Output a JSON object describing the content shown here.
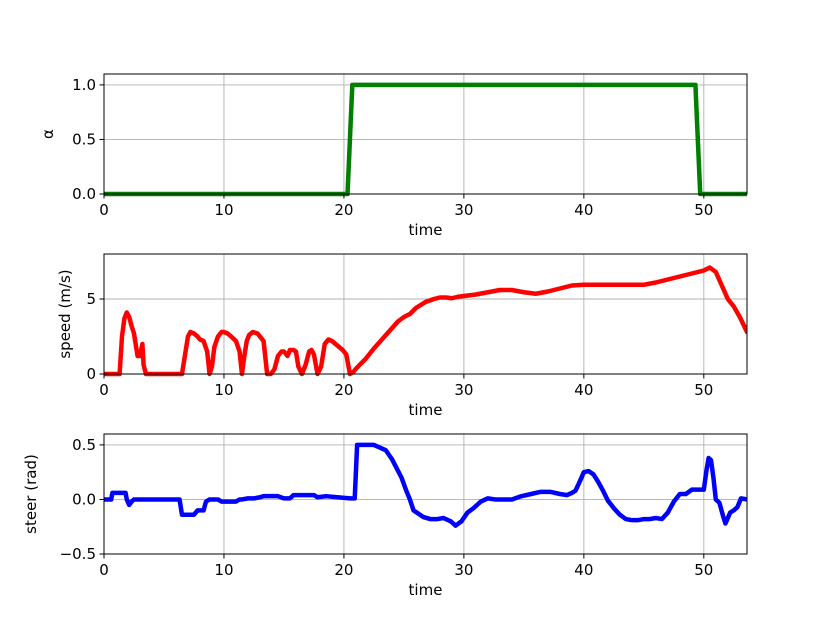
{
  "chart_data": [
    {
      "type": "line",
      "xlabel": "time",
      "ylabel": "α",
      "xlim": [
        0,
        53.6
      ],
      "ylim": [
        0,
        1.1
      ],
      "xticks": [
        0,
        10,
        20,
        30,
        40,
        50
      ],
      "yticks": [
        0.0,
        0.5,
        1.0
      ],
      "ytick_labels": [
        "0.0",
        "0.5",
        "1.0"
      ],
      "grid": true,
      "color": "#008000",
      "x": [
        0,
        20.3,
        20.7,
        49.3,
        49.7,
        53.6
      ],
      "y": [
        0,
        0,
        1,
        1,
        0,
        0
      ]
    },
    {
      "type": "line",
      "xlabel": "time",
      "ylabel": "speed (m/s)",
      "xlim": [
        0,
        53.6
      ],
      "ylim": [
        0,
        8
      ],
      "xticks": [
        0,
        10,
        20,
        30,
        40,
        50
      ],
      "yticks": [
        0,
        5
      ],
      "ytick_labels": [
        "0",
        "5"
      ],
      "grid": true,
      "color": "#ff0000",
      "x": [
        0,
        1.3,
        1.5,
        1.7,
        1.9,
        2.1,
        2.3,
        2.5,
        2.8,
        3.0,
        3.2,
        3.3,
        3.5,
        6.5,
        6.8,
        7.0,
        7.2,
        7.5,
        7.8,
        8.0,
        8.3,
        8.6,
        8.8,
        9.0,
        9.2,
        9.5,
        9.8,
        10.0,
        10.3,
        10.6,
        11.0,
        11.3,
        11.5,
        11.7,
        11.9,
        12.1,
        12.4,
        12.8,
        13.0,
        13.3,
        13.6,
        13.9,
        14.2,
        14.5,
        14.8,
        15.0,
        15.3,
        15.5,
        15.8,
        16.0,
        16.2,
        16.5,
        16.8,
        17.1,
        17.3,
        17.5,
        17.8,
        18.1,
        18.4,
        18.7,
        19.0,
        19.3,
        19.6,
        19.9,
        20.2,
        20.5,
        20.8,
        21.0,
        21.3,
        21.8,
        22.5,
        23.5,
        24.5,
        25.0,
        25.5,
        26.0,
        26.8,
        27.5,
        28.0,
        28.5,
        29.0,
        29.5,
        30.0,
        31.0,
        32.0,
        33.0,
        34.0,
        35.0,
        36.0,
        37.0,
        38.0,
        39.0,
        40.0,
        42.0,
        44.0,
        45.0,
        46.0,
        47.0,
        48.0,
        49.0,
        50.0,
        50.5,
        51.0,
        51.5,
        52.0,
        52.5,
        53.0,
        53.6
      ],
      "y": [
        0,
        0,
        2.5,
        3.7,
        4.1,
        3.8,
        3.2,
        2.7,
        1.2,
        1.2,
        2.0,
        0.6,
        0,
        0,
        1.5,
        2.5,
        2.8,
        2.7,
        2.5,
        2.3,
        2.2,
        1.5,
        0,
        0.5,
        1.8,
        2.5,
        2.8,
        2.8,
        2.7,
        2.5,
        2.2,
        1.5,
        0,
        1.2,
        2.2,
        2.6,
        2.8,
        2.7,
        2.5,
        2.2,
        0,
        0,
        0.3,
        1.2,
        1.5,
        1.5,
        1.2,
        1.6,
        1.6,
        1.5,
        0.5,
        0,
        0.6,
        1.5,
        1.6,
        1.3,
        0,
        0.5,
        2.0,
        2.3,
        2.2,
        2.0,
        1.8,
        1.6,
        1.3,
        0,
        0.15,
        0.35,
        0.6,
        1.0,
        1.7,
        2.6,
        3.5,
        3.8,
        4.0,
        4.4,
        4.8,
        5.0,
        5.1,
        5.1,
        5.05,
        5.15,
        5.2,
        5.3,
        5.45,
        5.6,
        5.6,
        5.45,
        5.35,
        5.5,
        5.7,
        5.9,
        5.95,
        5.95,
        5.95,
        5.95,
        6.1,
        6.3,
        6.5,
        6.7,
        6.9,
        7.1,
        6.8,
        5.9,
        5.0,
        4.5,
        3.8,
        2.8
      ]
    },
    {
      "type": "line",
      "xlabel": "time",
      "ylabel": "steer (rad)",
      "xlim": [
        0,
        53.6
      ],
      "ylim": [
        -0.5,
        0.6
      ],
      "xticks": [
        0,
        10,
        20,
        30,
        40,
        50
      ],
      "yticks": [
        -0.5,
        0.0,
        0.5
      ],
      "ytick_labels": [
        "−0.5",
        "0.0",
        "0.5"
      ],
      "grid": true,
      "color": "#0000ff",
      "x": [
        0,
        0.6,
        0.7,
        1.8,
        1.9,
        2.1,
        2.3,
        2.5,
        6.3,
        6.5,
        7.5,
        7.8,
        8.3,
        8.5,
        8.8,
        9.5,
        9.8,
        11.0,
        11.3,
        11.5,
        12.0,
        12.5,
        13.0,
        13.3,
        14.5,
        15.0,
        15.5,
        15.8,
        17.5,
        17.8,
        18.5,
        20.5,
        20.9,
        21.1,
        21.3,
        22.5,
        23.5,
        24.0,
        24.8,
        25.2,
        25.5,
        25.8,
        26.2,
        26.6,
        27.2,
        27.8,
        28.3,
        28.9,
        29.3,
        29.8,
        30.3,
        30.8,
        31.4,
        32.0,
        32.6,
        33.2,
        34.0,
        34.8,
        35.6,
        36.4,
        37.2,
        38.0,
        38.6,
        39.0,
        39.3,
        39.6,
        40.0,
        40.4,
        40.8,
        41.2,
        41.6,
        42.0,
        42.5,
        43.0,
        43.5,
        44.0,
        44.5,
        45.0,
        45.5,
        46.0,
        46.5,
        47.0,
        47.5,
        48.0,
        48.5,
        49.0,
        49.5,
        50.0,
        50.2,
        50.4,
        50.6,
        50.8,
        51.0,
        51.3,
        51.6,
        51.8,
        52.2,
        52.5,
        52.8,
        53.1,
        53.6
      ],
      "y": [
        0,
        0,
        0.06,
        0.06,
        0.0,
        -0.05,
        -0.02,
        0,
        0,
        -0.14,
        -0.14,
        -0.1,
        -0.1,
        -0.02,
        0,
        0,
        -0.02,
        -0.02,
        0,
        0,
        0.01,
        0.01,
        0.02,
        0.03,
        0.03,
        0.01,
        0.01,
        0.04,
        0.04,
        0.02,
        0.03,
        0.01,
        0.01,
        0.5,
        0.5,
        0.5,
        0.45,
        0.37,
        0.2,
        0.08,
        0.0,
        -0.1,
        -0.13,
        -0.16,
        -0.18,
        -0.18,
        -0.17,
        -0.2,
        -0.24,
        -0.2,
        -0.12,
        -0.08,
        -0.02,
        0.01,
        0.0,
        0.0,
        0.0,
        0.03,
        0.05,
        0.07,
        0.07,
        0.05,
        0.04,
        0.06,
        0.08,
        0.15,
        0.25,
        0.26,
        0.23,
        0.16,
        0.08,
        -0.01,
        -0.08,
        -0.14,
        -0.18,
        -0.19,
        -0.19,
        -0.18,
        -0.18,
        -0.17,
        -0.18,
        -0.12,
        -0.02,
        0.05,
        0.05,
        0.09,
        0.09,
        0.09,
        0.25,
        0.38,
        0.36,
        0.2,
        0.0,
        -0.03,
        -0.15,
        -0.22,
        -0.12,
        -0.1,
        -0.07,
        0.01,
        0.0
      ]
    }
  ]
}
